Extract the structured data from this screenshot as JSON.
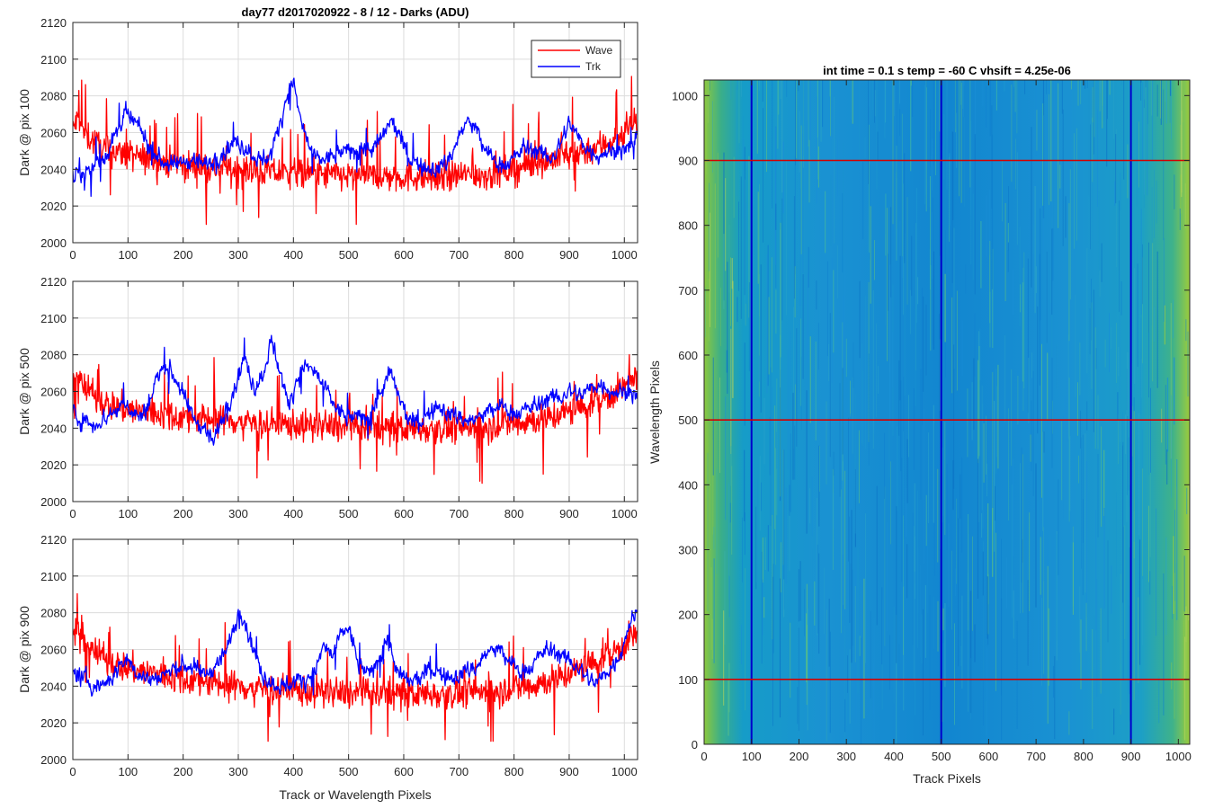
{
  "figure": {
    "left_title": "day77 d2017020922 - 8 / 12 - Darks (ADU)",
    "right_title": "int time = 0.1 s   temp = -60 C   vhsift = 4.25e-06",
    "left_xlabel": "Track or Wavelength Pixels",
    "right_xlabel": "Track Pixels",
    "right_ylabel": "Wavelength Pixels"
  },
  "chart_data": [
    {
      "type": "line",
      "ylabel": "Dark @ pix 100",
      "xlim": [
        0,
        1024
      ],
      "ylim": [
        2000,
        2120
      ],
      "xticks": [
        0,
        100,
        200,
        300,
        400,
        500,
        600,
        700,
        800,
        900,
        1000
      ],
      "yticks": [
        2000,
        2020,
        2040,
        2060,
        2080,
        2100,
        2120
      ],
      "grid": true,
      "legend": {
        "placement": "top-right",
        "entries": [
          "Wave",
          "Trk"
        ]
      },
      "series": [
        {
          "name": "Wave",
          "color": "#ff0000",
          "x": [
            0,
            10,
            20,
            35,
            50,
            60,
            75,
            100,
            125,
            150,
            175,
            200,
            225,
            250,
            275,
            300,
            325,
            350,
            375,
            400,
            425,
            450,
            475,
            500,
            525,
            550,
            575,
            600,
            625,
            650,
            675,
            700,
            725,
            750,
            775,
            800,
            825,
            850,
            875,
            900,
            925,
            950,
            975,
            1000,
            1010,
            1023
          ],
          "values": [
            2062,
            2068,
            2060,
            2056,
            2052,
            2050,
            2050,
            2048,
            2046,
            2045,
            2043,
            2042,
            2042,
            2041,
            2040,
            2040,
            2039,
            2039,
            2038,
            2038,
            2037,
            2037,
            2037,
            2036,
            2036,
            2036,
            2036,
            2036,
            2036,
            2036,
            2036,
            2037,
            2037,
            2037,
            2038,
            2040,
            2042,
            2044,
            2046,
            2048,
            2050,
            2052,
            2055,
            2060,
            2064,
            2066
          ]
        },
        {
          "name": "Trk",
          "color": "#0000ff",
          "x": [
            0,
            20,
            40,
            60,
            80,
            95,
            110,
            125,
            140,
            160,
            180,
            200,
            220,
            240,
            260,
            280,
            300,
            320,
            340,
            360,
            375,
            390,
            400,
            410,
            425,
            440,
            460,
            480,
            500,
            520,
            540,
            560,
            575,
            590,
            605,
            620,
            640,
            660,
            680,
            700,
            715,
            730,
            745,
            760,
            780,
            800,
            820,
            840,
            860,
            875,
            890,
            900,
            915,
            930,
            950,
            970,
            990,
            1010,
            1023
          ],
          "values": [
            2035,
            2038,
            2042,
            2048,
            2060,
            2070,
            2066,
            2060,
            2052,
            2045,
            2042,
            2044,
            2046,
            2042,
            2046,
            2052,
            2055,
            2050,
            2045,
            2048,
            2065,
            2082,
            2088,
            2070,
            2055,
            2045,
            2046,
            2048,
            2050,
            2052,
            2050,
            2056,
            2066,
            2060,
            2048,
            2044,
            2040,
            2040,
            2044,
            2058,
            2066,
            2062,
            2052,
            2046,
            2042,
            2046,
            2052,
            2050,
            2046,
            2048,
            2058,
            2066,
            2058,
            2052,
            2048,
            2050,
            2050,
            2052,
            2055
          ]
        }
      ]
    },
    {
      "type": "line",
      "ylabel": "Dark @ pix 500",
      "xlim": [
        0,
        1024
      ],
      "ylim": [
        2000,
        2120
      ],
      "xticks": [
        0,
        100,
        200,
        300,
        400,
        500,
        600,
        700,
        800,
        900,
        1000
      ],
      "yticks": [
        2000,
        2020,
        2040,
        2060,
        2080,
        2100,
        2120
      ],
      "grid": true,
      "series": [
        {
          "name": "Wave",
          "color": "#ff0000",
          "x": [
            0,
            10,
            20,
            35,
            50,
            60,
            75,
            100,
            125,
            150,
            175,
            200,
            225,
            250,
            275,
            300,
            325,
            350,
            375,
            400,
            425,
            450,
            475,
            500,
            525,
            550,
            575,
            600,
            625,
            650,
            675,
            700,
            725,
            750,
            775,
            800,
            825,
            850,
            875,
            900,
            925,
            950,
            975,
            1000,
            1010,
            1023
          ],
          "values": [
            2065,
            2070,
            2062,
            2058,
            2055,
            2053,
            2052,
            2050,
            2049,
            2048,
            2047,
            2046,
            2045,
            2045,
            2044,
            2044,
            2043,
            2043,
            2042,
            2042,
            2041,
            2041,
            2041,
            2040,
            2040,
            2040,
            2040,
            2040,
            2040,
            2040,
            2040,
            2040,
            2040,
            2041,
            2042,
            2043,
            2044,
            2045,
            2047,
            2049,
            2052,
            2055,
            2058,
            2062,
            2066,
            2068
          ]
        },
        {
          "name": "Trk",
          "color": "#0000ff",
          "x": [
            0,
            20,
            40,
            60,
            80,
            95,
            110,
            125,
            140,
            155,
            170,
            185,
            200,
            220,
            240,
            255,
            270,
            290,
            310,
            330,
            345,
            360,
            375,
            390,
            405,
            420,
            440,
            460,
            480,
            500,
            520,
            540,
            560,
            575,
            590,
            605,
            620,
            640,
            660,
            680,
            700,
            720,
            740,
            760,
            780,
            800,
            820,
            840,
            860,
            880,
            900,
            920,
            940,
            960,
            980,
            1000,
            1023
          ],
          "values": [
            2048,
            2044,
            2042,
            2046,
            2050,
            2055,
            2048,
            2046,
            2055,
            2070,
            2075,
            2068,
            2058,
            2045,
            2040,
            2032,
            2045,
            2060,
            2078,
            2062,
            2070,
            2088,
            2072,
            2052,
            2066,
            2074,
            2070,
            2060,
            2050,
            2045,
            2046,
            2048,
            2060,
            2070,
            2058,
            2046,
            2042,
            2046,
            2052,
            2048,
            2046,
            2044,
            2046,
            2050,
            2052,
            2048,
            2050,
            2052,
            2056,
            2056,
            2060,
            2058,
            2062,
            2064,
            2060,
            2060,
            2058
          ]
        }
      ]
    },
    {
      "type": "line",
      "ylabel": "Dark @ pix 900",
      "xlabel": "Track or Wavelength Pixels",
      "xlim": [
        0,
        1024
      ],
      "ylim": [
        2000,
        2120
      ],
      "xticks": [
        0,
        100,
        200,
        300,
        400,
        500,
        600,
        700,
        800,
        900,
        1000
      ],
      "yticks": [
        2000,
        2020,
        2040,
        2060,
        2080,
        2100,
        2120
      ],
      "grid": true,
      "series": [
        {
          "name": "Wave",
          "color": "#ff0000",
          "x": [
            0,
            10,
            20,
            35,
            50,
            60,
            75,
            100,
            125,
            150,
            175,
            200,
            225,
            250,
            275,
            300,
            325,
            350,
            375,
            400,
            425,
            450,
            475,
            500,
            525,
            550,
            575,
            600,
            625,
            650,
            675,
            700,
            725,
            750,
            775,
            800,
            825,
            850,
            875,
            900,
            925,
            950,
            975,
            1000,
            1010,
            1023
          ],
          "values": [
            2066,
            2072,
            2064,
            2060,
            2056,
            2054,
            2052,
            2050,
            2048,
            2047,
            2045,
            2044,
            2043,
            2042,
            2041,
            2040,
            2039,
            2039,
            2038,
            2038,
            2037,
            2037,
            2036,
            2036,
            2036,
            2036,
            2036,
            2036,
            2036,
            2036,
            2036,
            2036,
            2037,
            2037,
            2038,
            2039,
            2040,
            2042,
            2044,
            2047,
            2050,
            2054,
            2058,
            2062,
            2066,
            2068
          ]
        },
        {
          "name": "Trk",
          "color": "#0000ff",
          "x": [
            0,
            20,
            40,
            60,
            80,
            95,
            110,
            125,
            140,
            160,
            180,
            200,
            220,
            240,
            260,
            280,
            295,
            305,
            320,
            340,
            360,
            380,
            400,
            420,
            440,
            455,
            470,
            490,
            500,
            520,
            540,
            560,
            570,
            590,
            610,
            630,
            650,
            670,
            690,
            710,
            730,
            750,
            770,
            790,
            810,
            830,
            850,
            870,
            890,
            910,
            930,
            950,
            970,
            990,
            1010,
            1023
          ],
          "values": [
            2048,
            2044,
            2040,
            2042,
            2048,
            2055,
            2050,
            2045,
            2044,
            2046,
            2048,
            2052,
            2050,
            2046,
            2052,
            2060,
            2075,
            2082,
            2068,
            2048,
            2042,
            2040,
            2042,
            2044,
            2048,
            2062,
            2056,
            2070,
            2072,
            2050,
            2046,
            2060,
            2066,
            2046,
            2042,
            2044,
            2050,
            2046,
            2044,
            2048,
            2050,
            2058,
            2060,
            2054,
            2048,
            2050,
            2058,
            2060,
            2055,
            2052,
            2045,
            2042,
            2048,
            2056,
            2075,
            2080
          ]
        }
      ]
    },
    {
      "type": "heatmap",
      "title": "int time = 0.1 s   temp = -60 C   vhsift = 4.25e-06",
      "xlabel": "Track Pixels",
      "ylabel": "Wavelength Pixels",
      "xlim": [
        0,
        1024
      ],
      "ylim": [
        0,
        1024
      ],
      "xticks": [
        0,
        100,
        200,
        300,
        400,
        500,
        600,
        700,
        800,
        900,
        1000
      ],
      "yticks": [
        0,
        100,
        200,
        300,
        400,
        500,
        600,
        700,
        800,
        900,
        1000
      ],
      "colormap": "parula",
      "cursor_lines": {
        "vertical": {
          "color": "#0000cc",
          "x": [
            100,
            500,
            900
          ]
        },
        "horizontal": {
          "color": "#d40000",
          "y": [
            100,
            500,
            900
          ]
        }
      }
    }
  ]
}
